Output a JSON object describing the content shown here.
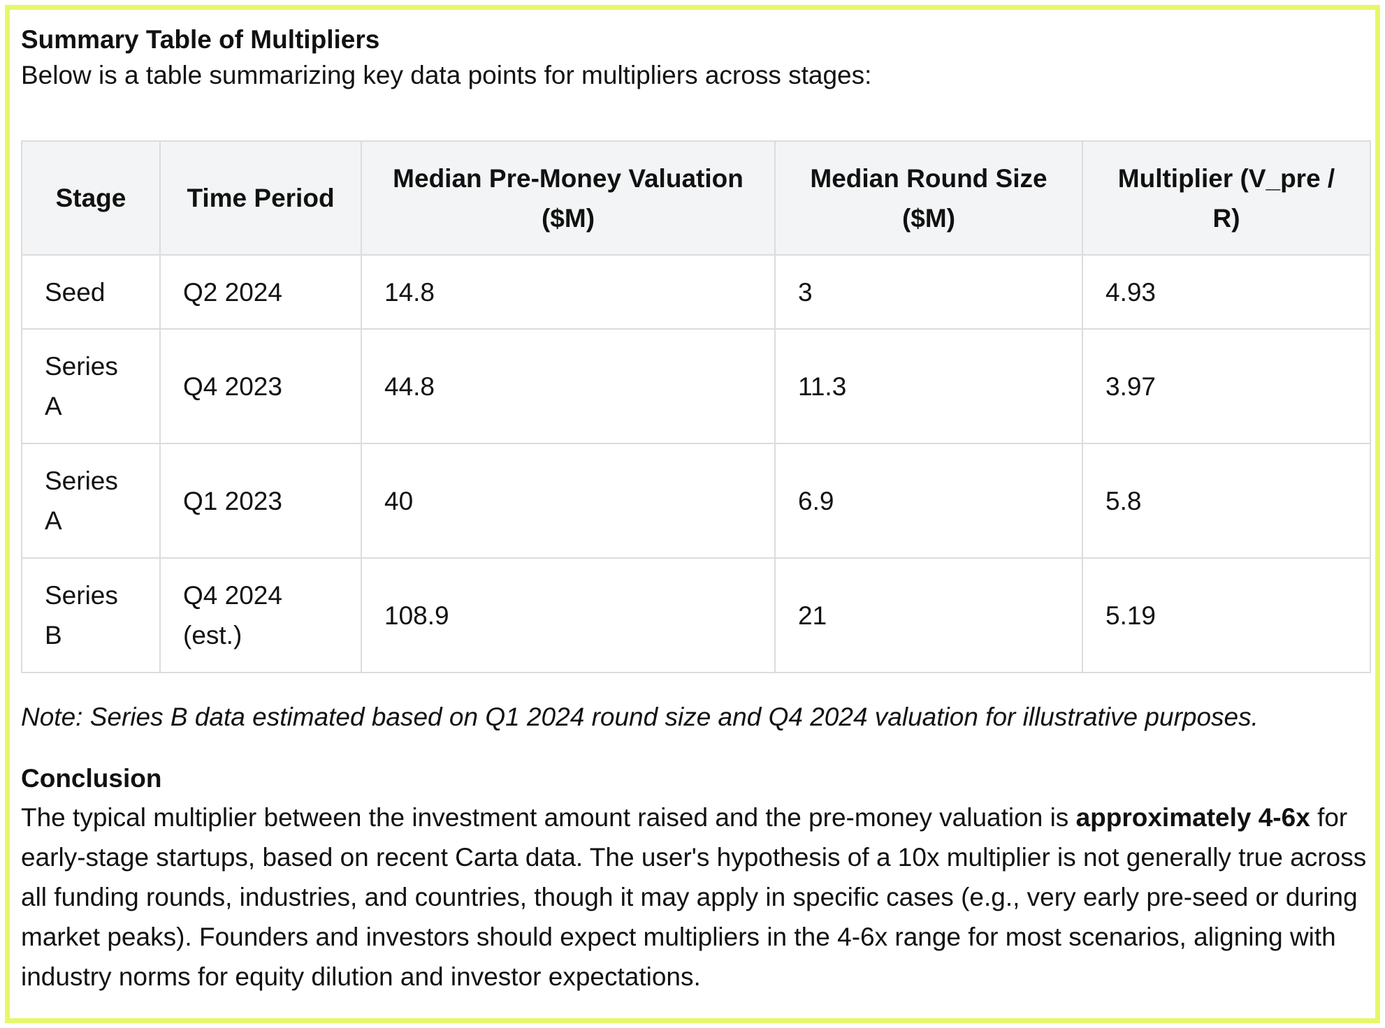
{
  "summary": {
    "title": "Summary Table of Multipliers",
    "intro": "Below is a table summarizing key data points for multipliers across stages:"
  },
  "table": {
    "headers": [
      "Stage",
      "Time Period",
      "Median Pre-Money Valuation ($M)",
      "Median Round Size ($M)",
      "Multiplier (V_pre / R)"
    ],
    "rows": [
      {
        "stage": "Seed",
        "period": "Q2 2024",
        "valuation": "14.8",
        "round_size": "3",
        "multiplier": "4.93"
      },
      {
        "stage": "Series A",
        "period": "Q4 2023",
        "valuation": "44.8",
        "round_size": "11.3",
        "multiplier": "3.97"
      },
      {
        "stage": "Series A",
        "period": "Q1 2023",
        "valuation": "40",
        "round_size": "6.9",
        "multiplier": "5.8"
      },
      {
        "stage": "Series B",
        "period": "Q4 2024 (est.)",
        "valuation": "108.9",
        "round_size": "21",
        "multiplier": "5.19"
      }
    ]
  },
  "note": "Note: Series B data estimated based on Q1 2024 round size and Q4 2024 valuation for illustrative purposes.",
  "conclusion": {
    "title": "Conclusion",
    "text_before": "The typical multiplier between the investment amount raised and the pre-money valuation is ",
    "text_bold": "approximately 4-6x",
    "text_after": " for early-stage startups, based on recent Carta data. The user's hypothesis of a 10x multiplier is not generally true across all funding rounds, industries, and countries, though it may apply in specific cases (e.g., very early pre-seed or during market peaks). Founders and investors should expect multipliers in the 4-6x range for most scenarios, aligning with industry norms for equity dilution and investor expectations."
  },
  "colors": {
    "frame_border": "#e6f76a",
    "header_background": "#f3f4f5",
    "table_border": "#dcdcdc"
  }
}
